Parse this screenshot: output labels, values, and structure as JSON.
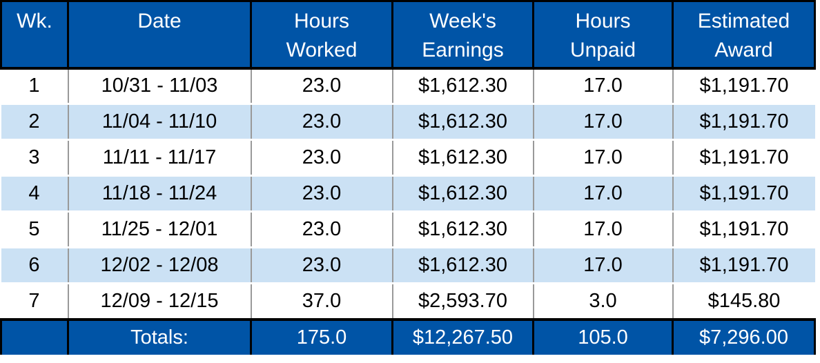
{
  "colors": {
    "header_bg": "#0054A6",
    "header_text": "#FFFFFF",
    "row_bg": "#FFFFFF",
    "row_alt_bg": "#CBE1F4",
    "grid_line": "#999999",
    "border": "#000000",
    "totals_bg": "#0054A6",
    "totals_text": "#FFFFFF",
    "body_text": "#000000"
  },
  "table": {
    "columns": [
      {
        "key": "wk",
        "label": "Wk."
      },
      {
        "key": "date",
        "label": "Date"
      },
      {
        "key": "hours_worked",
        "label": "Hours\nWorked"
      },
      {
        "key": "weeks_earnings",
        "label": "Week's\nEarnings"
      },
      {
        "key": "hours_unpaid",
        "label": "Hours\nUnpaid"
      },
      {
        "key": "estimated_award",
        "label": "Estimated\nAward"
      }
    ],
    "rows": [
      {
        "wk": "1",
        "date": "10/31 - 11/03",
        "hours_worked": "23.0",
        "weeks_earnings": "$1,612.30",
        "hours_unpaid": "17.0",
        "estimated_award": "$1,191.70"
      },
      {
        "wk": "2",
        "date": "11/04 - 11/10",
        "hours_worked": "23.0",
        "weeks_earnings": "$1,612.30",
        "hours_unpaid": "17.0",
        "estimated_award": "$1,191.70"
      },
      {
        "wk": "3",
        "date": "11/11 - 11/17",
        "hours_worked": "23.0",
        "weeks_earnings": "$1,612.30",
        "hours_unpaid": "17.0",
        "estimated_award": "$1,191.70"
      },
      {
        "wk": "4",
        "date": "11/18 - 11/24",
        "hours_worked": "23.0",
        "weeks_earnings": "$1,612.30",
        "hours_unpaid": "17.0",
        "estimated_award": "$1,191.70"
      },
      {
        "wk": "5",
        "date": "11/25 - 12/01",
        "hours_worked": "23.0",
        "weeks_earnings": "$1,612.30",
        "hours_unpaid": "17.0",
        "estimated_award": "$1,191.70"
      },
      {
        "wk": "6",
        "date": "12/02 - 12/08",
        "hours_worked": "23.0",
        "weeks_earnings": "$1,612.30",
        "hours_unpaid": "17.0",
        "estimated_award": "$1,191.70"
      },
      {
        "wk": "7",
        "date": "12/09 - 12/15",
        "hours_worked": "37.0",
        "weeks_earnings": "$2,593.70",
        "hours_unpaid": "3.0",
        "estimated_award": "$145.80"
      }
    ],
    "totals": {
      "wk": "",
      "label": "Totals:",
      "hours_worked": "175.0",
      "weeks_earnings": "$12,267.50",
      "hours_unpaid": "105.0",
      "estimated_award": "$7,296.00"
    }
  }
}
